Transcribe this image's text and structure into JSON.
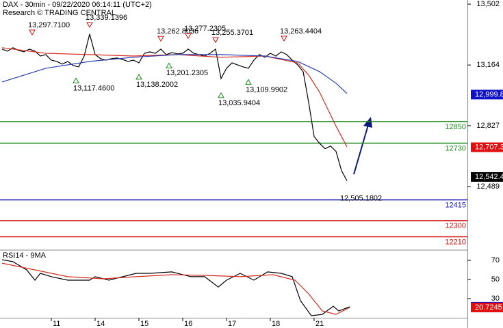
{
  "chart_data": [
    {
      "type": "line",
      "title": "DAX - 30min - 09/22/2020 06:14:11 (UTC+2)",
      "subtitle": "Research © TRADING CENTRAL",
      "xlim": [
        0,
        170
      ],
      "ylim": [
        12140,
        13525
      ],
      "yticks": [
        {
          "value": 13502,
          "label": "13,502"
        },
        {
          "value": 13164,
          "label": "13,164"
        },
        {
          "value": 12827,
          "label": "12,827"
        },
        {
          "value": 12489,
          "label": "12,489"
        }
      ],
      "series": [
        {
          "color": "#000000",
          "x": [
            0,
            2,
            4,
            6,
            8,
            10,
            12,
            14,
            16,
            18,
            20,
            22,
            24,
            26,
            28,
            30,
            32,
            34,
            36,
            38,
            40,
            42,
            44,
            46,
            48,
            50,
            52,
            54,
            56,
            58,
            60,
            62,
            64,
            66,
            68,
            70,
            72,
            74,
            76,
            78,
            80,
            82,
            84,
            86,
            88,
            90,
            92,
            94,
            96,
            98,
            100,
            102,
            104,
            106,
            108,
            110,
            112,
            114,
            116,
            118,
            120,
            122,
            124,
            126
          ],
          "values": [
            13252,
            13241,
            13260,
            13245,
            13237,
            13252,
            13241,
            13214,
            13222,
            13191,
            13184,
            13169,
            13184,
            13161,
            13154,
            13214,
            13336,
            13222,
            13199,
            13191,
            13199,
            13203,
            13195,
            13184,
            13191,
            13176,
            13229,
            13237,
            13229,
            13252,
            13222,
            13233,
            13226,
            13229,
            13252,
            13229,
            13222,
            13214,
            13229,
            13252,
            13089,
            13146,
            13176,
            13165,
            13154,
            13146,
            13191,
            13222,
            13207,
            13229,
            13214,
            13237,
            13222,
            13191,
            13165,
            13127,
            12957,
            12767,
            12729,
            12699,
            12714,
            12684,
            12578,
            12521
          ]
        },
        {
          "color": "#d42a1e",
          "x": [
            0,
            16,
            32,
            48,
            64,
            80,
            96,
            108,
            112,
            116,
            122,
            126
          ],
          "values": [
            13260,
            13229,
            13222,
            13214,
            13222,
            13207,
            13214,
            13176,
            13108,
            13013,
            12824,
            12710
          ]
        },
        {
          "color": "#2a3cb0",
          "x": [
            0,
            16,
            32,
            48,
            64,
            80,
            96,
            108,
            116,
            122,
            126
          ],
          "values": [
            13070,
            13146,
            13184,
            13207,
            13222,
            13222,
            13214,
            13184,
            13127,
            13063,
            13006
          ]
        }
      ],
      "levels": [
        {
          "value": 12850,
          "color": "#1c8a1c"
        },
        {
          "value": 12730,
          "color": "#1c8a1c"
        },
        {
          "value": 12415,
          "color": "#1010b0"
        },
        {
          "value": 12300,
          "color": "#d01010"
        },
        {
          "value": 12210,
          "color": "#d01010"
        }
      ],
      "price_markers": [
        {
          "value": 12999.8,
          "label": "12,999.8",
          "color": "#1010c8"
        },
        {
          "value": 12707.3,
          "label": "12,707.3",
          "color": "#e01010"
        },
        {
          "value": 12542.4,
          "label": "12,542.4",
          "color": "#000000"
        }
      ],
      "annotations": [
        {
          "x": 11,
          "value": 13297.71,
          "label": "13,297.7100",
          "kind": "high"
        },
        {
          "x": 32,
          "value": 13339.1396,
          "label": "13,339.1396",
          "kind": "high"
        },
        {
          "x": 58,
          "value": 13262.8036,
          "label": "13,262.8036",
          "kind": "high"
        },
        {
          "x": 68,
          "value": 13277.2305,
          "label": "13,277.2305",
          "kind": "high"
        },
        {
          "x": 78,
          "value": 13255.3701,
          "label": "13,255.3701",
          "kind": "high"
        },
        {
          "x": 103,
          "value": 13263.4404,
          "label": "13,263.4404",
          "kind": "high"
        },
        {
          "x": 27,
          "value": 13117.46,
          "label": "13,117.4600",
          "kind": "low"
        },
        {
          "x": 50,
          "value": 13138.2002,
          "label": "13,138.2002",
          "kind": "low"
        },
        {
          "x": 61,
          "value": 13201.2305,
          "label": "13,201.2305",
          "kind": "low"
        },
        {
          "x": 80,
          "value": 13035.9404,
          "label": "13,035.9404",
          "kind": "low"
        },
        {
          "x": 90,
          "value": 13109.9902,
          "label": "13,109.9902",
          "kind": "low"
        },
        {
          "x": 126,
          "value": 12505.1802,
          "label": "12,505.1802",
          "kind": "low-plain"
        }
      ]
    },
    {
      "type": "line",
      "title": "RSI14 - 9MA",
      "xlim": [
        0,
        170
      ],
      "xticks": [
        {
          "value": 18,
          "label": "11"
        },
        {
          "value": 34,
          "label": "14"
        },
        {
          "value": 50,
          "label": "15"
        },
        {
          "value": 66,
          "label": "16"
        },
        {
          "value": 82,
          "label": "17"
        },
        {
          "value": 98,
          "label": "18"
        },
        {
          "value": 114,
          "label": "21"
        }
      ],
      "ylim": [
        10,
        80
      ],
      "yticks": [
        70,
        50,
        30
      ],
      "series": [
        {
          "color": "#000000",
          "x": [
            0,
            4,
            9,
            12,
            14,
            18,
            24,
            32,
            34,
            39,
            49,
            54,
            62,
            69,
            74,
            79,
            82,
            87,
            92,
            97,
            102,
            106,
            109,
            113,
            117,
            121,
            123,
            127
          ],
          "values": [
            70.7,
            68.6,
            60.0,
            49.3,
            56.4,
            52.9,
            49.3,
            49.3,
            52.9,
            49.3,
            56.4,
            56.4,
            57.9,
            52.9,
            52.9,
            42.1,
            49.3,
            56.4,
            49.3,
            57.9,
            56.4,
            52.9,
            27.9,
            12.1,
            13.6,
            22.1,
            17.1,
            21.5
          ]
        },
        {
          "color": "#d42a1e",
          "x": [
            0,
            12,
            24,
            37,
            49,
            62,
            74,
            87,
            99,
            107,
            112,
            117,
            122,
            127
          ],
          "values": [
            67.1,
            60.0,
            52.9,
            50.7,
            52.9,
            55.0,
            54.3,
            52.9,
            55.0,
            49.3,
            35.0,
            17.1,
            13.6,
            20.7
          ]
        }
      ],
      "price_markers": [
        {
          "value": 21.4997,
          "color": "#1010c8"
        },
        {
          "value": 20.7245,
          "color": "#e01010"
        }
      ]
    }
  ]
}
